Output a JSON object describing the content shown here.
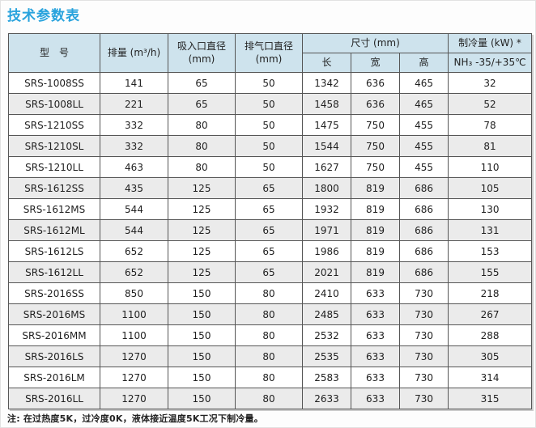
{
  "title": "技术参数表",
  "colors": {
    "title": "#29a3dd",
    "header_bg": "#cee3ed",
    "row_alt_bg": "#ebebeb",
    "border": "#565656"
  },
  "table": {
    "headers": {
      "model": "型　号",
      "displacement": "排量 (m³/h)",
      "suction_line1": "吸入口直径",
      "suction_line2": "(mm)",
      "exhaust_line1": "排气口直径",
      "exhaust_line2": "(mm)",
      "dimensions": "尺寸 (mm)",
      "length": "长",
      "width": "宽",
      "height": "高",
      "cooling": "制冷量 (kW) *",
      "cooling_condition": "NH₃ -35/+35℃"
    },
    "rows": [
      {
        "model": "SRS-1008SS",
        "displacement": "141",
        "suction": "65",
        "exhaust": "50",
        "length": "1342",
        "width": "636",
        "height": "465",
        "cooling": "32"
      },
      {
        "model": "SRS-1008LL",
        "displacement": "221",
        "suction": "65",
        "exhaust": "50",
        "length": "1458",
        "width": "636",
        "height": "465",
        "cooling": "52"
      },
      {
        "model": "SRS-1210SS",
        "displacement": "332",
        "suction": "80",
        "exhaust": "50",
        "length": "1475",
        "width": "750",
        "height": "455",
        "cooling": "78"
      },
      {
        "model": "SRS-1210SL",
        "displacement": "332",
        "suction": "80",
        "exhaust": "50",
        "length": "1544",
        "width": "750",
        "height": "455",
        "cooling": "81"
      },
      {
        "model": "SRS-1210LL",
        "displacement": "463",
        "suction": "80",
        "exhaust": "50",
        "length": "1627",
        "width": "750",
        "height": "455",
        "cooling": "110"
      },
      {
        "model": "SRS-1612SS",
        "displacement": "435",
        "suction": "125",
        "exhaust": "65",
        "length": "1800",
        "width": "819",
        "height": "686",
        "cooling": "105"
      },
      {
        "model": "SRS-1612MS",
        "displacement": "544",
        "suction": "125",
        "exhaust": "65",
        "length": "1932",
        "width": "819",
        "height": "686",
        "cooling": "130"
      },
      {
        "model": "SRS-1612ML",
        "displacement": "544",
        "suction": "125",
        "exhaust": "65",
        "length": "1971",
        "width": "819",
        "height": "686",
        "cooling": "131"
      },
      {
        "model": "SRS-1612LS",
        "displacement": "652",
        "suction": "125",
        "exhaust": "65",
        "length": "1986",
        "width": "819",
        "height": "686",
        "cooling": "153"
      },
      {
        "model": "SRS-1612LL",
        "displacement": "652",
        "suction": "125",
        "exhaust": "65",
        "length": "2021",
        "width": "819",
        "height": "686",
        "cooling": "155"
      },
      {
        "model": "SRS-2016SS",
        "displacement": "850",
        "suction": "150",
        "exhaust": "80",
        "length": "2410",
        "width": "633",
        "height": "730",
        "cooling": "218"
      },
      {
        "model": "SRS-2016MS",
        "displacement": "1100",
        "suction": "150",
        "exhaust": "80",
        "length": "2485",
        "width": "633",
        "height": "730",
        "cooling": "267"
      },
      {
        "model": "SRS-2016MM",
        "displacement": "1100",
        "suction": "150",
        "exhaust": "80",
        "length": "2532",
        "width": "633",
        "height": "730",
        "cooling": "288"
      },
      {
        "model": "SRS-2016LS",
        "displacement": "1270",
        "suction": "150",
        "exhaust": "80",
        "length": "2535",
        "width": "633",
        "height": "730",
        "cooling": "305"
      },
      {
        "model": "SRS-2016LM",
        "displacement": "1270",
        "suction": "150",
        "exhaust": "80",
        "length": "2583",
        "width": "633",
        "height": "730",
        "cooling": "314"
      },
      {
        "model": "SRS-2016LL",
        "displacement": "1270",
        "suction": "150",
        "exhaust": "80",
        "length": "2633",
        "width": "633",
        "height": "730",
        "cooling": "315"
      }
    ]
  },
  "note": "注: 在过热度5K，过冷度0K，液体接近温度5K工况下制冷量。"
}
